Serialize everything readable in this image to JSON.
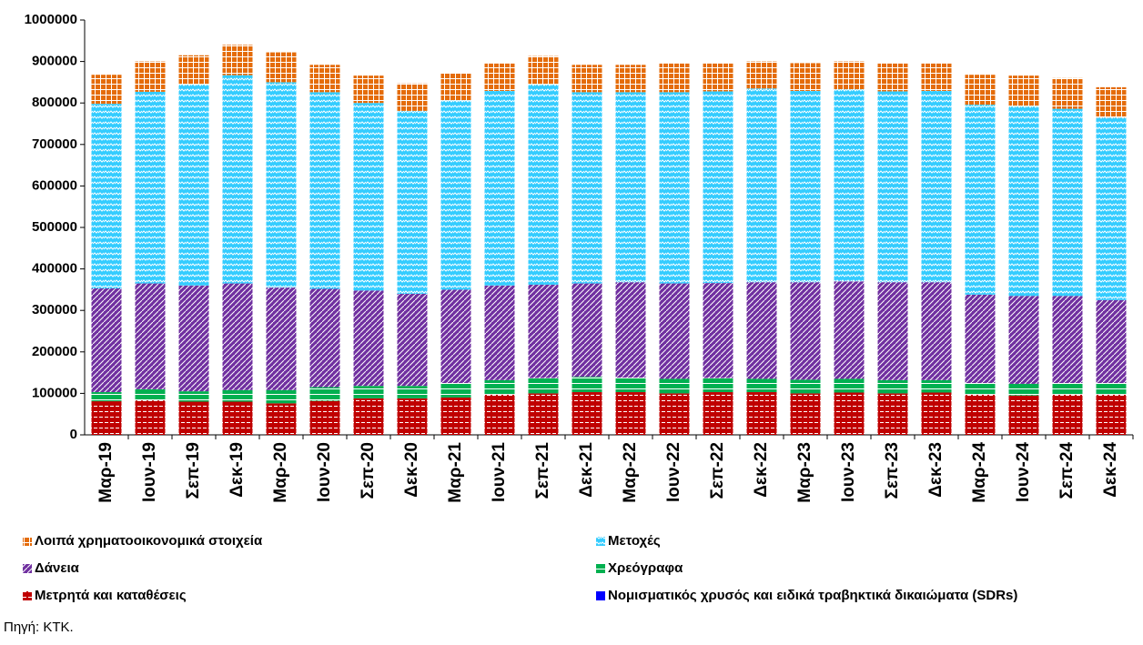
{
  "chart_data": {
    "type": "stacked_bar",
    "categories": [
      "Μαρ-19",
      "Ιουν-19",
      "Σεπ-19",
      "Δεκ-19",
      "Μαρ-20",
      "Ιουν-20",
      "Σεπ-20",
      "Δεκ-20",
      "Μαρ-21",
      "Ιουν-21",
      "Σεπ-21",
      "Δεκ-21",
      "Μαρ-22",
      "Ιουν-22",
      "Σεπ-22",
      "Δεκ-22",
      "Μαρ-23",
      "Ιουν-23",
      "Σεπ-23",
      "Δεκ-23",
      "Μαρ-24",
      "Ιουν-24",
      "Σεπ-24",
      "Δεκ-24"
    ],
    "series": [
      {
        "name": "Νομισματικός χρυσός και ειδικά τραβηκτικά δικαιώματα (SDRs)",
        "color": "#0000ff",
        "values": [
          0,
          0,
          0,
          0,
          0,
          0,
          0,
          0,
          0,
          0,
          0,
          0,
          0,
          0,
          0,
          0,
          0,
          0,
          0,
          0,
          0,
          0,
          0,
          0
        ]
      },
      {
        "name": "Μετρητά και καταθέσεις",
        "color": "#c00000",
        "values": [
          81000,
          83000,
          80000,
          80000,
          76000,
          82000,
          88000,
          88000,
          90000,
          97000,
          100000,
          103000,
          103000,
          100000,
          103000,
          103000,
          100000,
          102000,
          100000,
          102000,
          97000,
          95000,
          97000,
          97000
        ]
      },
      {
        "name": "Χρεόγραφα",
        "color": "#00b050",
        "values": [
          22000,
          27000,
          25000,
          28000,
          32000,
          33000,
          30000,
          30000,
          35000,
          35000,
          37000,
          37000,
          35000,
          35000,
          34000,
          32000,
          33000,
          33000,
          32000,
          30000,
          28000,
          28000,
          28000,
          28000
        ]
      },
      {
        "name": "Δάνεια",
        "color": "#7030a0",
        "values": [
          250000,
          255000,
          255000,
          257000,
          247000,
          237000,
          230000,
          222000,
          225000,
          228000,
          225000,
          225000,
          230000,
          230000,
          229000,
          233000,
          235000,
          235000,
          236000,
          236000,
          213000,
          212000,
          210000,
          200000
        ]
      },
      {
        "name": "Μετοχές",
        "color": "#33ccff",
        "values": [
          445000,
          462000,
          485000,
          502000,
          495000,
          474000,
          452000,
          441000,
          456000,
          469000,
          483000,
          461000,
          458000,
          461000,
          462000,
          467000,
          461000,
          463000,
          460000,
          461000,
          458000,
          458000,
          451000,
          440000
        ]
      },
      {
        "name": "Λοιπά χρηματοοικονομικά στοιχεία",
        "color": "#e46c0a",
        "values": [
          70000,
          73000,
          70000,
          73000,
          72000,
          66000,
          66000,
          66000,
          66000,
          66000,
          68000,
          66000,
          66000,
          69000,
          67000,
          65000,
          67000,
          67000,
          67000,
          66000,
          72000,
          73000,
          74000,
          73000
        ]
      }
    ],
    "ylim": [
      0,
      1000000
    ],
    "yticks": [
      0,
      100000,
      200000,
      300000,
      400000,
      500000,
      600000,
      700000,
      800000,
      900000,
      1000000
    ],
    "grid": false,
    "source": "Πηγή: ΚΤΚ."
  }
}
